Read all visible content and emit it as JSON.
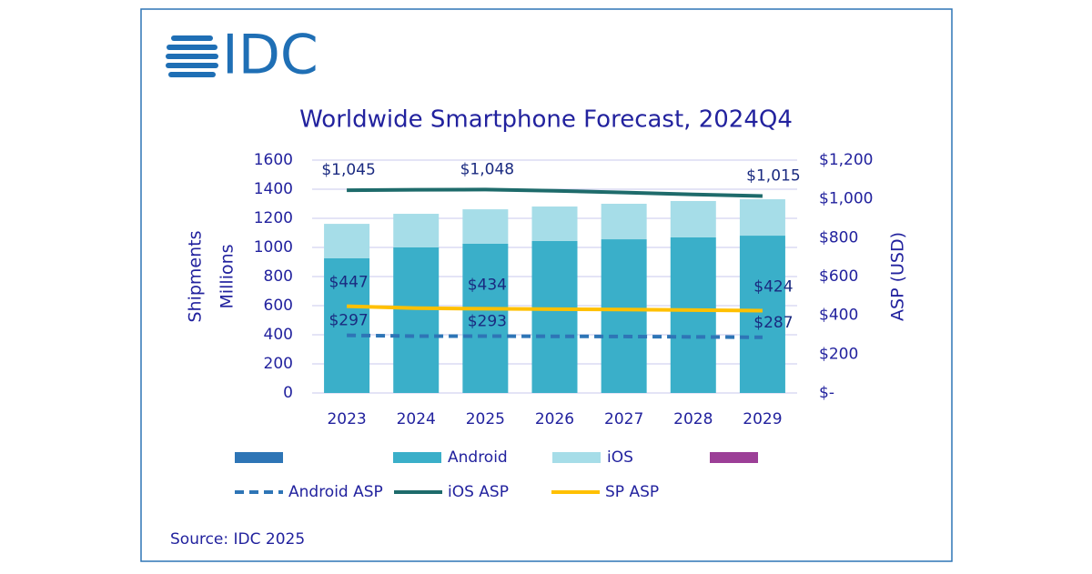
{
  "logo": "IDC",
  "chart_data": {
    "type": "bar",
    "title": "Worldwide Smartphone Forecast, 2024Q4",
    "categories": [
      "2023",
      "2024",
      "2025",
      "2026",
      "2027",
      "2028",
      "2029"
    ],
    "ylabel": [
      "Shipments",
      "Millions"
    ],
    "y2label": "ASP (USD)",
    "ylim": [
      0,
      1600
    ],
    "yticks": [
      0,
      200,
      400,
      600,
      800,
      1000,
      1200,
      1400,
      1600
    ],
    "y2lim": [
      0,
      1200
    ],
    "y2ticks": [
      {
        "value": 0,
        "label": "$-"
      },
      {
        "value": 200,
        "label": "$200"
      },
      {
        "value": 400,
        "label": "$400"
      },
      {
        "value": 600,
        "label": "$600"
      },
      {
        "value": 800,
        "label": "$800"
      },
      {
        "value": 1000,
        "label": "$1,000"
      },
      {
        "value": 1200,
        "label": "$1,200"
      }
    ],
    "grid": true,
    "stacked": true,
    "series": [
      {
        "name": "Android",
        "color": "#3aafc9",
        "values": [
          925,
          1000,
          1025,
          1044,
          1056,
          1069,
          1081
        ]
      },
      {
        "name": "iOS",
        "color": "#a6dde8",
        "values": [
          237,
          231,
          237,
          237,
          244,
          250,
          250
        ]
      },
      {
        "name": "Android ASP",
        "color": "#2e75b6",
        "type": "line",
        "dash": true,
        "axis": "y2",
        "values": [
          297,
          293,
          293,
          292,
          291,
          289,
          287
        ],
        "value_labels": [
          "$297",
          null,
          "$293",
          null,
          null,
          null,
          "$287"
        ]
      },
      {
        "name": "iOS ASP",
        "color": "#1e6b6b",
        "type": "line",
        "axis": "y2",
        "values": [
          1045,
          1047,
          1048,
          1042,
          1033,
          1023,
          1015
        ],
        "value_labels": [
          "$1,045",
          null,
          "$1,048",
          null,
          null,
          null,
          "$1,015"
        ]
      },
      {
        "name": "SP ASP",
        "color": "#ffc000",
        "type": "line",
        "axis": "y2",
        "values": [
          447,
          437,
          434,
          432,
          430,
          427,
          424
        ],
        "value_labels": [
          "$447",
          null,
          "$434",
          null,
          null,
          null,
          "$424"
        ]
      }
    ],
    "source": "Source: IDC 2025"
  }
}
